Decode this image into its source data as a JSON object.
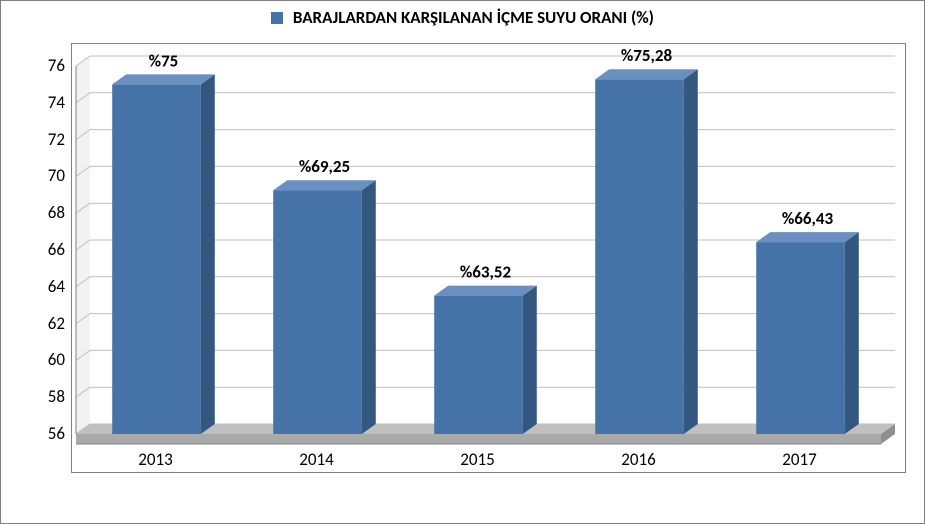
{
  "chart": {
    "type": "bar-3d",
    "legend_label": "BARAJLARDAN KARŞILANAN İÇME SUYU ORANI (%)",
    "categories": [
      "2013",
      "2014",
      "2015",
      "2016",
      "2017"
    ],
    "values": [
      75,
      69.25,
      63.52,
      75.28,
      66.43
    ],
    "data_labels": [
      "%75",
      "%69,25",
      "%63,52",
      "%75,28",
      "%66,43"
    ],
    "bar_color": "#4573a7",
    "bar_top_color": "#6a8fc1",
    "bar_side_color": "#33577f",
    "ylim": [
      56,
      76
    ],
    "ytick_step": 2,
    "y_ticks": [
      56,
      58,
      60,
      62,
      64,
      66,
      68,
      70,
      72,
      74,
      76
    ],
    "background_color": "#ffffff",
    "grid_color": "#bfbfbf",
    "floor_color": "#c0c0c0",
    "border_color": "#808080",
    "axis_font_size": 17,
    "label_font_size": 17,
    "legend_font_size": 17,
    "bar_width_ratio": 0.55,
    "depth_x": 14,
    "depth_y": 10
  }
}
